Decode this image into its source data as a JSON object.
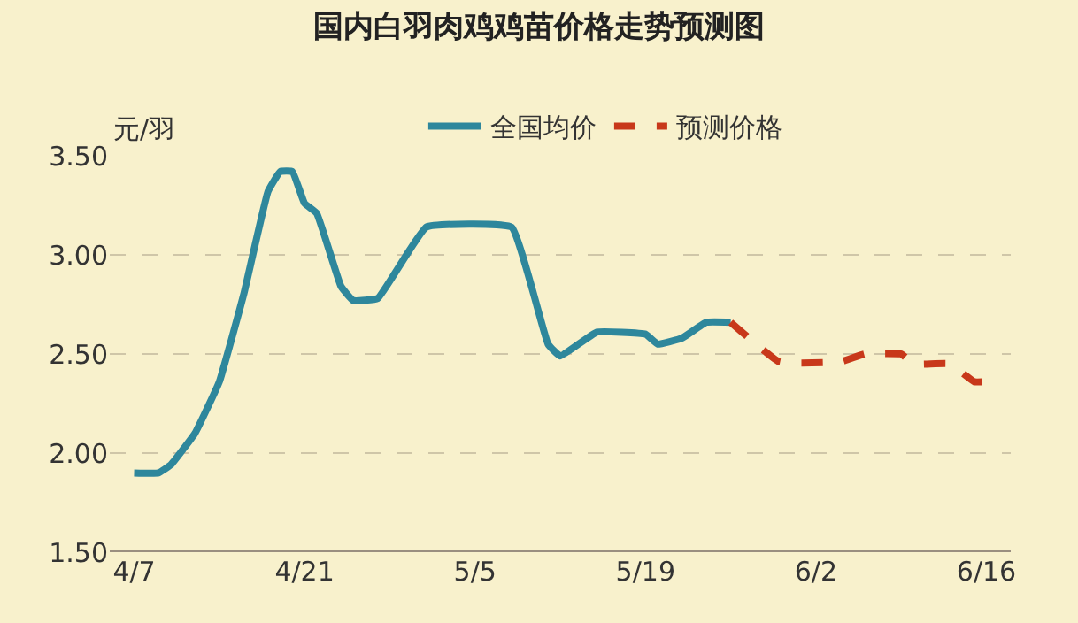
{
  "chart_data": {
    "type": "line",
    "title": "国内白羽肉鸡鸡苗价格走势预测图",
    "ylabel": "元/羽",
    "xlim": [
      "--04-05",
      "--06-18"
    ],
    "xticks": [
      {
        "value": "--04-07",
        "label": "4/7"
      },
      {
        "value": "--04-21",
        "label": "4/21"
      },
      {
        "value": "--05-05",
        "label": "5/5"
      },
      {
        "value": "--05-19",
        "label": "5/19"
      },
      {
        "value": "--06-02",
        "label": "6/2"
      },
      {
        "value": "--06-16",
        "label": "6/16"
      }
    ],
    "ylim": [
      1.5,
      3.5
    ],
    "yticks": [
      {
        "value": 1.5,
        "label": "1.50"
      },
      {
        "value": 2.0,
        "label": "2.00"
      },
      {
        "value": 2.5,
        "label": "2.50"
      },
      {
        "value": 3.0,
        "label": "3.00"
      },
      {
        "value": 3.5,
        "label": "3.50"
      }
    ],
    "grid": "y",
    "legend": "top",
    "series": [
      {
        "name": "全国均价",
        "color": "#2e879c",
        "line_style": "solid",
        "x": [
          "--04-07",
          "--04-09",
          "--04-10",
          "--04-12",
          "--04-14",
          "--04-16",
          "--04-18",
          "--04-19",
          "--04-20",
          "--04-21",
          "--04-22",
          "--04-24",
          "--04-25",
          "--04-27",
          "--05-01",
          "--05-08",
          "--05-11",
          "--05-12",
          "--05-15",
          "--05-19",
          "--05-20",
          "--05-22",
          "--05-24",
          "--05-26"
        ],
        "values": [
          1.9,
          1.9,
          1.94,
          2.1,
          2.36,
          2.8,
          3.32,
          3.42,
          3.42,
          3.26,
          3.21,
          2.84,
          2.77,
          2.78,
          3.14,
          3.14,
          2.55,
          2.49,
          2.61,
          2.6,
          2.55,
          2.58,
          2.66,
          2.66
        ]
      },
      {
        "name": "预测价格",
        "color": "#c8381a",
        "line_style": "dashed",
        "x": [
          "--05-26",
          "--05-30",
          "--06-04",
          "--06-06",
          "--06-09",
          "--06-10",
          "--06-13",
          "--06-15",
          "--06-16"
        ],
        "values": [
          2.66,
          2.46,
          2.46,
          2.5,
          2.5,
          2.45,
          2.45,
          2.36,
          2.36
        ]
      }
    ]
  }
}
